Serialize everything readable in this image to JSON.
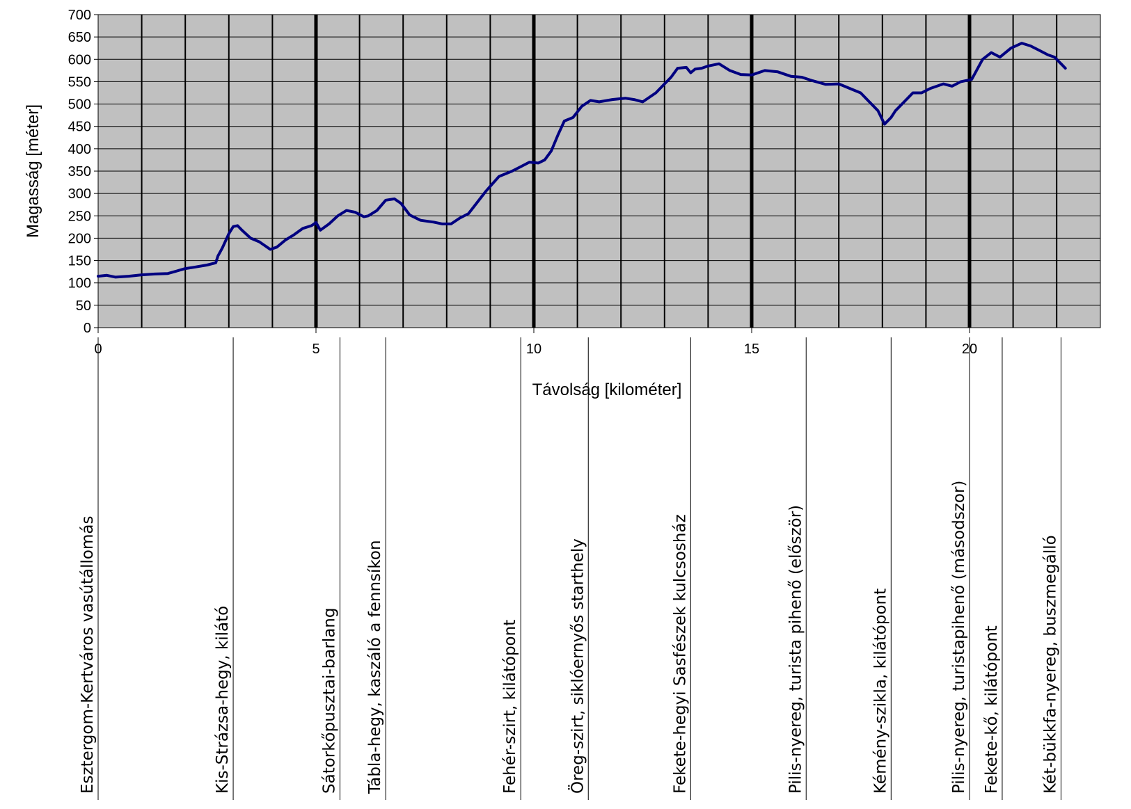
{
  "chart_data": {
    "type": "line",
    "title": "",
    "xlabel": "Távolság [kilométer]",
    "ylabel": "Magasság [méter]",
    "xlim": [
      0,
      23
    ],
    "ylim": [
      0,
      700
    ],
    "x_ticks": [
      0,
      5,
      10,
      15,
      20
    ],
    "y_ticks": [
      0,
      50,
      100,
      150,
      200,
      250,
      300,
      350,
      400,
      450,
      500,
      550,
      600,
      650,
      700
    ],
    "grid": true,
    "grid_vertical_major_every_km": 5,
    "legend": "none",
    "colors": {
      "plot_background": "#c0c0c0",
      "line": "#000080",
      "grid": "#000000"
    },
    "series": [
      {
        "x": [
          0,
          0.2,
          0.4,
          0.7,
          1.0,
          1.3,
          1.6,
          2.0,
          2.2,
          2.5,
          2.7,
          2.75,
          2.85,
          3.0,
          3.1,
          3.2,
          3.3,
          3.5,
          3.7,
          3.95,
          4.1,
          4.3,
          4.5,
          4.7,
          4.9,
          5.0,
          5.1,
          5.3,
          5.5,
          5.7,
          5.9,
          6.1,
          6.2,
          6.4,
          6.6,
          6.8,
          6.95,
          7.15,
          7.4,
          7.7,
          7.9,
          8.1,
          8.3,
          8.5,
          8.7,
          8.9,
          9.2,
          9.5,
          9.7,
          9.9,
          10.1,
          10.25,
          10.4,
          10.55,
          10.7,
          10.9,
          11.1,
          11.3,
          11.5,
          11.8,
          12.1,
          12.3,
          12.5,
          12.8,
          13.0,
          13.15,
          13.3,
          13.5,
          13.6,
          13.7,
          13.85,
          14.0,
          14.25,
          14.5,
          14.75,
          15.0,
          15.3,
          15.6,
          15.9,
          16.15,
          16.4,
          16.7,
          17.0,
          17.25,
          17.5,
          17.7,
          17.9,
          18.05,
          18.2,
          18.3,
          18.5,
          18.7,
          18.9,
          19.1,
          19.4,
          19.6,
          19.8,
          20.05,
          20.3,
          20.5,
          20.7,
          20.95,
          21.2,
          21.4,
          21.6,
          21.8,
          21.95,
          22.1,
          22.2
        ],
        "y": [
          115,
          117,
          113,
          115,
          118,
          120,
          121,
          132,
          135,
          140,
          145,
          160,
          178,
          210,
          226,
          228,
          218,
          200,
          192,
          175,
          180,
          196,
          208,
          222,
          228,
          235,
          218,
          232,
          250,
          262,
          258,
          248,
          250,
          262,
          285,
          288,
          278,
          252,
          240,
          236,
          232,
          232,
          245,
          255,
          280,
          305,
          338,
          350,
          360,
          370,
          368,
          375,
          395,
          430,
          462,
          470,
          495,
          508,
          505,
          510,
          513,
          510,
          505,
          525,
          545,
          560,
          580,
          582,
          570,
          578,
          580,
          585,
          590,
          575,
          566,
          565,
          575,
          572,
          562,
          560,
          552,
          544,
          545,
          535,
          525,
          505,
          485,
          455,
          470,
          485,
          505,
          525,
          525,
          535,
          545,
          540,
          550,
          555,
          600,
          615,
          605,
          625,
          636,
          630,
          620,
          610,
          605,
          590,
          580
        ]
      }
    ],
    "waypoints": [
      {
        "km": 0,
        "label": "Esztergom-Kertváros vasútállomás"
      },
      {
        "km": 3.1,
        "label": "Kis-Strázsa-hegy, kilátó"
      },
      {
        "km": 5.55,
        "label": "Sátorkőpusztai-barlang"
      },
      {
        "km": 6.6,
        "label": "Tábla-hegy, kaszáló a fennsíkon"
      },
      {
        "km": 9.7,
        "label": "Fehér-szirt, kilátópont"
      },
      {
        "km": 11.25,
        "label": "Öreg-szirt, siklóernyős starthely"
      },
      {
        "km": 13.6,
        "label": "Fekete-hegyi Sasfészek kulcsosház"
      },
      {
        "km": 16.25,
        "label": "Pilis-nyereg, turista pihenő (először)"
      },
      {
        "km": 18.2,
        "label": "Kémény-szikla, kilátópont"
      },
      {
        "km": 20.0,
        "label": "Pilis-nyereg, turistapihenő (másodszor)"
      },
      {
        "km": 20.75,
        "label": "Fekete-kő, kilátópont"
      },
      {
        "km": 22.1,
        "label": "Két-bükkfa-nyereg, buszmegálló"
      }
    ]
  }
}
